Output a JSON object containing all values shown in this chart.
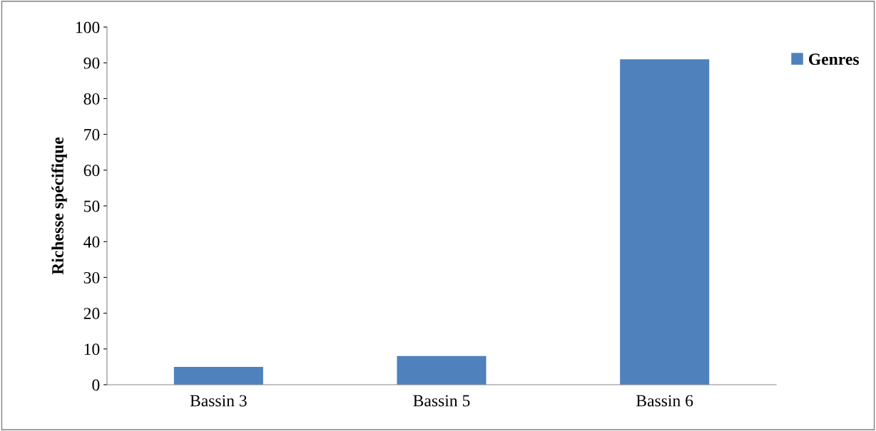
{
  "chart_data": {
    "type": "bar",
    "ylabel": "Richesse spécifique",
    "categories": [
      "Bassin 3",
      "Bassin 5",
      "Bassin 6"
    ],
    "series": [
      {
        "name": "Genres",
        "color": "#4f81bd",
        "values": [
          5,
          8,
          91
        ]
      }
    ],
    "ylim": [
      0,
      100
    ],
    "yticks": [
      0,
      10,
      20,
      30,
      40,
      50,
      60,
      70,
      80,
      90,
      100
    ],
    "grid": false,
    "legend": "top right"
  }
}
